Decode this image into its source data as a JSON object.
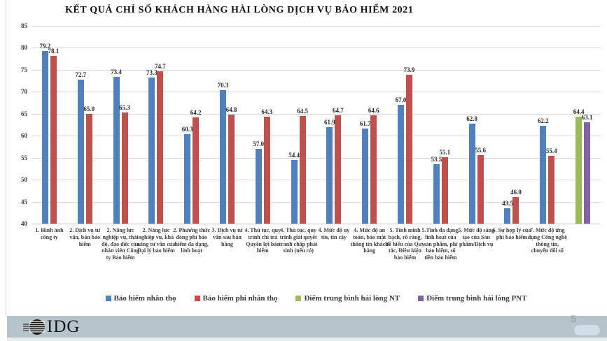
{
  "chart_data": {
    "type": "bar",
    "title": "KẾT QUẢ CHỈ SỐ KHÁCH HÀNG HÀI LÒNG DỊCH VỤ BẢO HIỂM 2021",
    "ylim": [
      40,
      85
    ],
    "yticks": [
      40,
      45,
      50,
      55,
      60,
      65,
      70,
      75,
      80,
      85
    ],
    "grid": true,
    "legend_position": "bottom",
    "categories": [
      "1. Hình ảnh công ty",
      "2. Dịch vụ tư vấn, bán bảo hiểm",
      "2. Năng lực nghiệp vụ, thái độ, đạo đức của nhân viên Công ty Bảo hiểm",
      "2. Năng lực nghiệp vụ, khả năng tư vấn của Đại lý bảo hiểm",
      "2. Phương thức đóng phí bảo hiểm đa dạng, linh hoạt",
      "3. Dịch vụ tư vấn sau bán hàng",
      "4. Thủ tục, quy trình chi trả Quyền lợi bảo hiểm",
      "4. Thủ tục, quy trình giải quyết tranh chấp phát sinh (nếu có)",
      "4. Mức độ uy tín, tin cậy",
      "4. Mức độ an toàn, bảo mật thông tin khách hàng",
      "5. Tính minh bạch, rõ ràng, dễ hiểu của Quy tắc, Điều kiện bảo hiểm",
      "5.Tính đa dạng, linh hoạt của sản phẩm, phí bảo hiểm, số tiền bảo hiểm",
      "5. Mức độ sáng tạo của Sản phẩm/Dịch vụ",
      "6. Sự hợp lý của phí bảo hiểm",
      "7. Mức độ ứng dụng Công nghệ thông tin, chuyển đổi số",
      ""
    ],
    "series": [
      {
        "name": "Bảo hiểm nhân thọ",
        "color": "#4F81BD",
        "values": [
          79.2,
          72.7,
          73.4,
          73.3,
          60.3,
          70.3,
          57.0,
          54.4,
          61.9,
          61.7,
          67.0,
          53.5,
          62.8,
          43.5,
          62.2,
          null
        ]
      },
      {
        "name": "Bảo hiểm phi nhân thọ",
        "color": "#C0504D",
        "values": [
          78.1,
          65.0,
          65.3,
          74.7,
          64.2,
          64.8,
          64.3,
          64.5,
          64.7,
          64.6,
          73.9,
          55.1,
          55.6,
          46.0,
          55.4,
          null
        ]
      },
      {
        "name": "Điểm trung bình hài lòng NT",
        "color": "#9BBB59",
        "values": [
          null,
          null,
          null,
          null,
          null,
          null,
          null,
          null,
          null,
          null,
          null,
          null,
          null,
          null,
          null,
          64.4
        ]
      },
      {
        "name": "Điểm trung bình hài lòng PNT",
        "color": "#8064A2",
        "values": [
          null,
          null,
          null,
          null,
          null,
          null,
          null,
          null,
          null,
          null,
          null,
          null,
          null,
          null,
          null,
          63.1
        ]
      }
    ]
  },
  "footer": {
    "logo_text": "IDG",
    "page_number": "5"
  }
}
